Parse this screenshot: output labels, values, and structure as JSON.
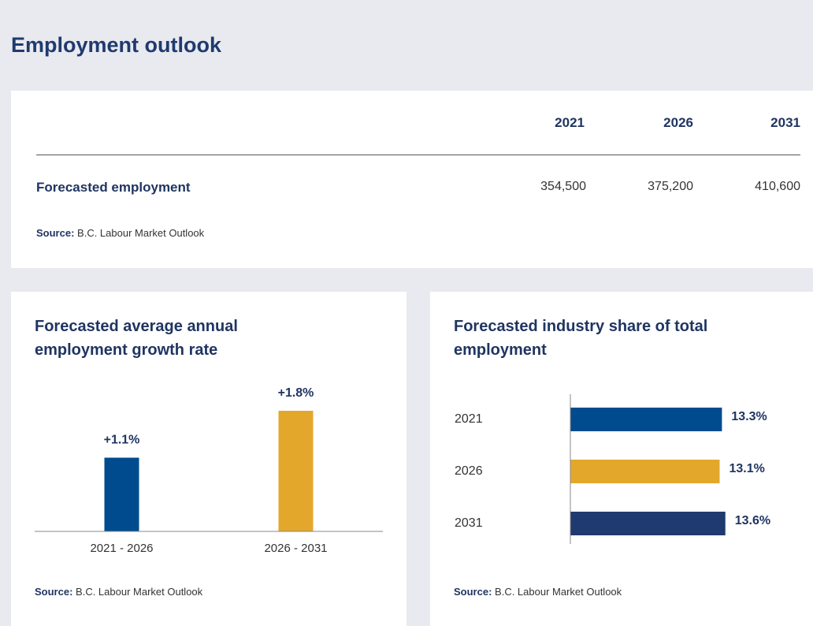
{
  "header": {
    "title": "Employment outlook"
  },
  "table": {
    "columns": [
      "2021",
      "2026",
      "2031"
    ],
    "rows": [
      [
        "Forecasted employment",
        "354,500",
        "375,200",
        "410,600"
      ]
    ],
    "source": {
      "label": "Source:",
      "text": "B.C. Labour Market Outlook"
    }
  },
  "chart_data": [
    {
      "type": "bar",
      "title": "Forecasted average annual employment growth rate",
      "categories": [
        "2021 - 2026",
        "2026 - 2031"
      ],
      "values": [
        1.1,
        1.8
      ],
      "value_labels": [
        "+1.1%",
        "+1.8%"
      ],
      "colors": [
        "#004b8d",
        "#e3a82b"
      ],
      "ylim": [
        0,
        2
      ],
      "source": {
        "label": "Source:",
        "text": "B.C. Labour Market Outlook"
      }
    },
    {
      "type": "hbar",
      "title": "Forecasted industry share of total employment",
      "categories": [
        "2021",
        "2026",
        "2031"
      ],
      "values": [
        13.3,
        13.1,
        13.6
      ],
      "value_labels": [
        "13.3%",
        "13.1%",
        "13.6%"
      ],
      "colors": [
        "#004b8d",
        "#e3a82b",
        "#1f3a6e"
      ],
      "xlim": [
        0,
        15
      ],
      "source": {
        "label": "Source:",
        "text": "B.C. Labour Market Outlook"
      }
    }
  ]
}
